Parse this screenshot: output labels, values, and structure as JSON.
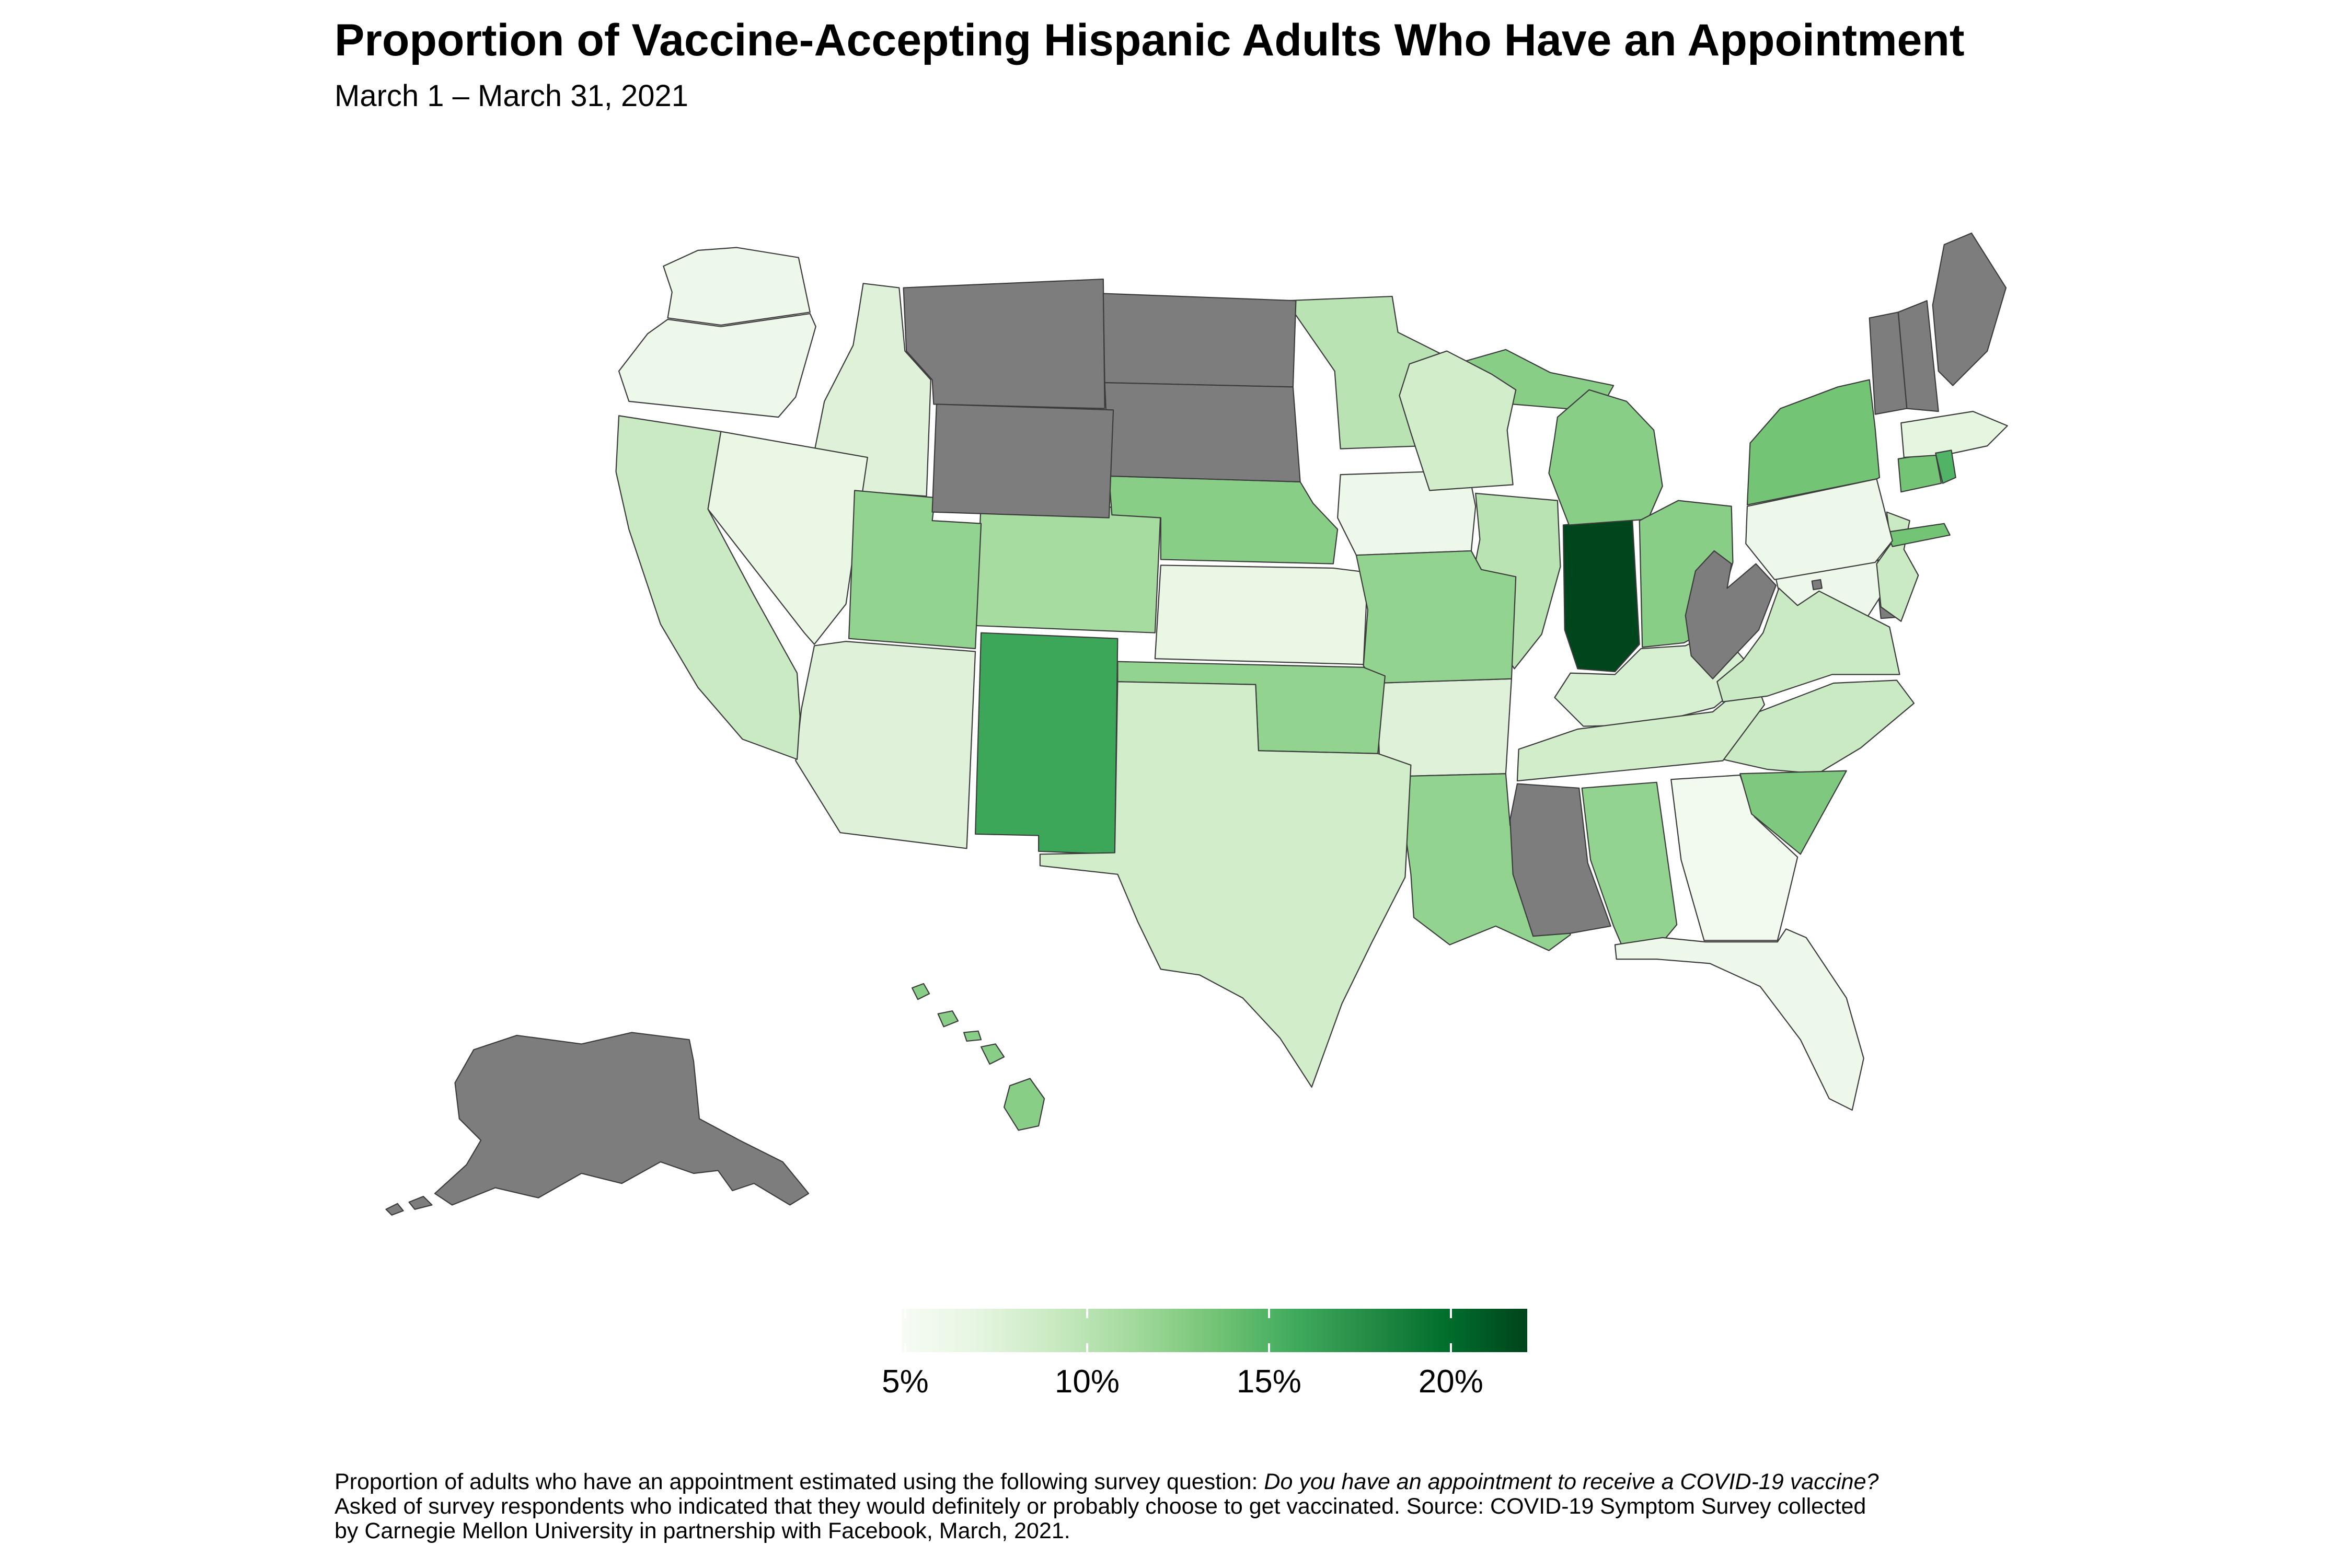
{
  "title": "Proportion of Vaccine-Accepting Hispanic Adults Who Have an Appointment",
  "subtitle": "March 1 – March 31, 2021",
  "legend": {
    "tick_labels": [
      "5%",
      "10%",
      "15%",
      "20%"
    ],
    "tick_values": [
      5,
      10,
      15,
      20
    ]
  },
  "caption": {
    "line1_normal": "Proportion of adults who have an appointment estimated using the following survey question: ",
    "line1_italic": "Do you have an appointment to receive a COVID-19 vaccine?",
    "line2": "Asked of survey respondents who indicated that they would definitely or probably choose to get vaccinated. Source: COVID-19 Symptom Survey collected",
    "line3": "by Carnegie Mellon University in partnership with Facebook, March, 2021."
  },
  "chart_data": {
    "type": "choropleth_map",
    "region": "United States (states)",
    "metric": "Proportion of vaccine-accepting Hispanic adults who have an appointment",
    "unit": "%",
    "period": "March 1 – March 31, 2021",
    "color_scale": {
      "domain": [
        4.9,
        22.1
      ],
      "ramp": [
        "#f7fcf5",
        "#e5f5e0",
        "#c7e9c0",
        "#a1d99b",
        "#74c476",
        "#41ab5d",
        "#238b45",
        "#006d2c",
        "#00441b"
      ],
      "no_data_color": "#7d7d7d",
      "border_color": "#3c3c3c"
    },
    "states": [
      {
        "abbr": "AL",
        "name": "Alabama",
        "value": 12
      },
      {
        "abbr": "AK",
        "name": "Alaska",
        "value": null
      },
      {
        "abbr": "AZ",
        "name": "Arizona",
        "value": 7.5
      },
      {
        "abbr": "AR",
        "name": "Arkansas",
        "value": 7.5
      },
      {
        "abbr": "CA",
        "name": "California",
        "value": 9
      },
      {
        "abbr": "CO",
        "name": "Colorado",
        "value": 11
      },
      {
        "abbr": "CT",
        "name": "Connecticut",
        "value": 13.5
      },
      {
        "abbr": "DE",
        "name": "Delaware",
        "value": null
      },
      {
        "abbr": "FL",
        "name": "Florida",
        "value": 6
      },
      {
        "abbr": "GA",
        "name": "Georgia",
        "value": 5.5
      },
      {
        "abbr": "HI",
        "name": "Hawaii",
        "value": 12.5
      },
      {
        "abbr": "ID",
        "name": "Idaho",
        "value": 7.5
      },
      {
        "abbr": "IL",
        "name": "Illinois",
        "value": 10
      },
      {
        "abbr": "IN",
        "name": "Indiana",
        "value": 22
      },
      {
        "abbr": "IA",
        "name": "Iowa",
        "value": 6
      },
      {
        "abbr": "KS",
        "name": "Kansas",
        "value": 6.5
      },
      {
        "abbr": "KY",
        "name": "Kentucky",
        "value": 8
      },
      {
        "abbr": "LA",
        "name": "Louisiana",
        "value": 12
      },
      {
        "abbr": "ME",
        "name": "Maine",
        "value": null
      },
      {
        "abbr": "MD",
        "name": "Maryland",
        "value": 6
      },
      {
        "abbr": "MA",
        "name": "Massachusetts",
        "value": 7
      },
      {
        "abbr": "MI",
        "name": "Michigan",
        "value": 12.5
      },
      {
        "abbr": "MN",
        "name": "Minnesota",
        "value": 10
      },
      {
        "abbr": "MS",
        "name": "Mississippi",
        "value": null
      },
      {
        "abbr": "MO",
        "name": "Missouri",
        "value": 12
      },
      {
        "abbr": "MT",
        "name": "Montana",
        "value": null
      },
      {
        "abbr": "NE",
        "name": "Nebraska",
        "value": 12.5
      },
      {
        "abbr": "NV",
        "name": "Nevada",
        "value": 6.5
      },
      {
        "abbr": "NH",
        "name": "New Hampshire",
        "value": null
      },
      {
        "abbr": "NJ",
        "name": "New Jersey",
        "value": 9
      },
      {
        "abbr": "NM",
        "name": "New Mexico",
        "value": 16
      },
      {
        "abbr": "NY",
        "name": "New York",
        "value": 13.5
      },
      {
        "abbr": "NC",
        "name": "North Carolina",
        "value": 9
      },
      {
        "abbr": "ND",
        "name": "North Dakota",
        "value": null
      },
      {
        "abbr": "OH",
        "name": "Ohio",
        "value": 12.5
      },
      {
        "abbr": "OK",
        "name": "Oklahoma",
        "value": 12
      },
      {
        "abbr": "OR",
        "name": "Oregon",
        "value": 6
      },
      {
        "abbr": "PA",
        "name": "Pennsylvania",
        "value": 6
      },
      {
        "abbr": "RI",
        "name": "Rhode Island",
        "value": 15
      },
      {
        "abbr": "SC",
        "name": "South Carolina",
        "value": 13
      },
      {
        "abbr": "SD",
        "name": "South Dakota",
        "value": null
      },
      {
        "abbr": "TN",
        "name": "Tennessee",
        "value": 8.5
      },
      {
        "abbr": "TX",
        "name": "Texas",
        "value": 8.5
      },
      {
        "abbr": "UT",
        "name": "Utah",
        "value": 12
      },
      {
        "abbr": "VT",
        "name": "Vermont",
        "value": null
      },
      {
        "abbr": "VA",
        "name": "Virginia",
        "value": 9
      },
      {
        "abbr": "WA",
        "name": "Washington",
        "value": 6
      },
      {
        "abbr": "WV",
        "name": "West Virginia",
        "value": null
      },
      {
        "abbr": "WI",
        "name": "Wisconsin",
        "value": 8.5
      },
      {
        "abbr": "WY",
        "name": "Wyoming",
        "value": null
      },
      {
        "abbr": "DC",
        "name": "District of Columbia",
        "value": null
      }
    ]
  }
}
